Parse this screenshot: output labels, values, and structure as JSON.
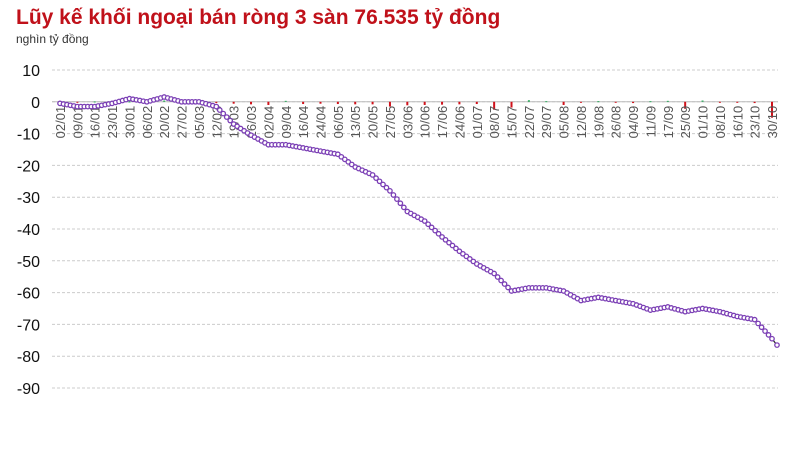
{
  "chart_data": {
    "type": "line",
    "title": "Lũy kế khối ngoại bán ròng 3 sàn 76.535 tỷ đồng",
    "ylabel": "nghìn tỷ đồng",
    "ylim": [
      -90,
      10
    ],
    "yticks": [
      10,
      0,
      -10,
      -20,
      -30,
      -40,
      -50,
      -60,
      -70,
      -80,
      -90
    ],
    "grid": true,
    "x": [
      "02/01",
      "09/01",
      "16/01",
      "23/01",
      "30/01",
      "06/02",
      "20/02",
      "27/02",
      "05/03",
      "12/03",
      "19/03",
      "26/03",
      "02/04",
      "09/04",
      "16/04",
      "24/04",
      "06/05",
      "13/05",
      "20/05",
      "27/05",
      "03/06",
      "10/06",
      "17/06",
      "24/06",
      "01/07",
      "08/07",
      "15/07",
      "22/07",
      "29/07",
      "05/08",
      "12/08",
      "19/08",
      "26/08",
      "04/09",
      "11/09",
      "17/09",
      "25/09",
      "01/10",
      "08/10",
      "16/10",
      "23/10",
      "30/10"
    ],
    "series": [
      {
        "type": "line",
        "color": "#7b3fb5",
        "values": [
          -0.5,
          -1.5,
          -1.5,
          -0.5,
          1,
          0,
          1.5,
          0,
          0,
          -1.5,
          -7,
          -10.5,
          -13.5,
          -13.5,
          -14.5,
          -15.5,
          -16.5,
          -20.5,
          -23,
          -28,
          -34.5,
          -37.5,
          -42.5,
          -47,
          -51,
          -54,
          -59.5,
          -58.5,
          -58.5,
          -59.5,
          -62.5,
          -61.5,
          -62.5,
          -63.5,
          -65.5,
          -64.5,
          -66,
          -65,
          -66,
          -67.5,
          -68.5,
          -74.5
        ],
        "last_value": -76.5
      },
      {
        "type": "bar",
        "color_negative": "#d0121b",
        "color_positive": "#2eaa5c",
        "values": [
          -0.2,
          -0.2,
          0.1,
          0.2,
          0.1,
          -0.3,
          0.4,
          -0.6,
          -0.3,
          -0.4,
          -0.6,
          -0.8,
          -1,
          0.3,
          -0.7,
          -0.6,
          -0.7,
          -0.8,
          -0.8,
          -1.5,
          -1.1,
          -1,
          -0.9,
          -0.8,
          -0.7,
          -2.5,
          -1.8,
          0.5,
          0.2,
          -1,
          -0.3,
          0.2,
          -0.2,
          -0.4,
          0.2,
          0.3,
          -2.2,
          0.4,
          -0.3,
          -0.3,
          -0.4,
          -5
        ]
      }
    ]
  }
}
